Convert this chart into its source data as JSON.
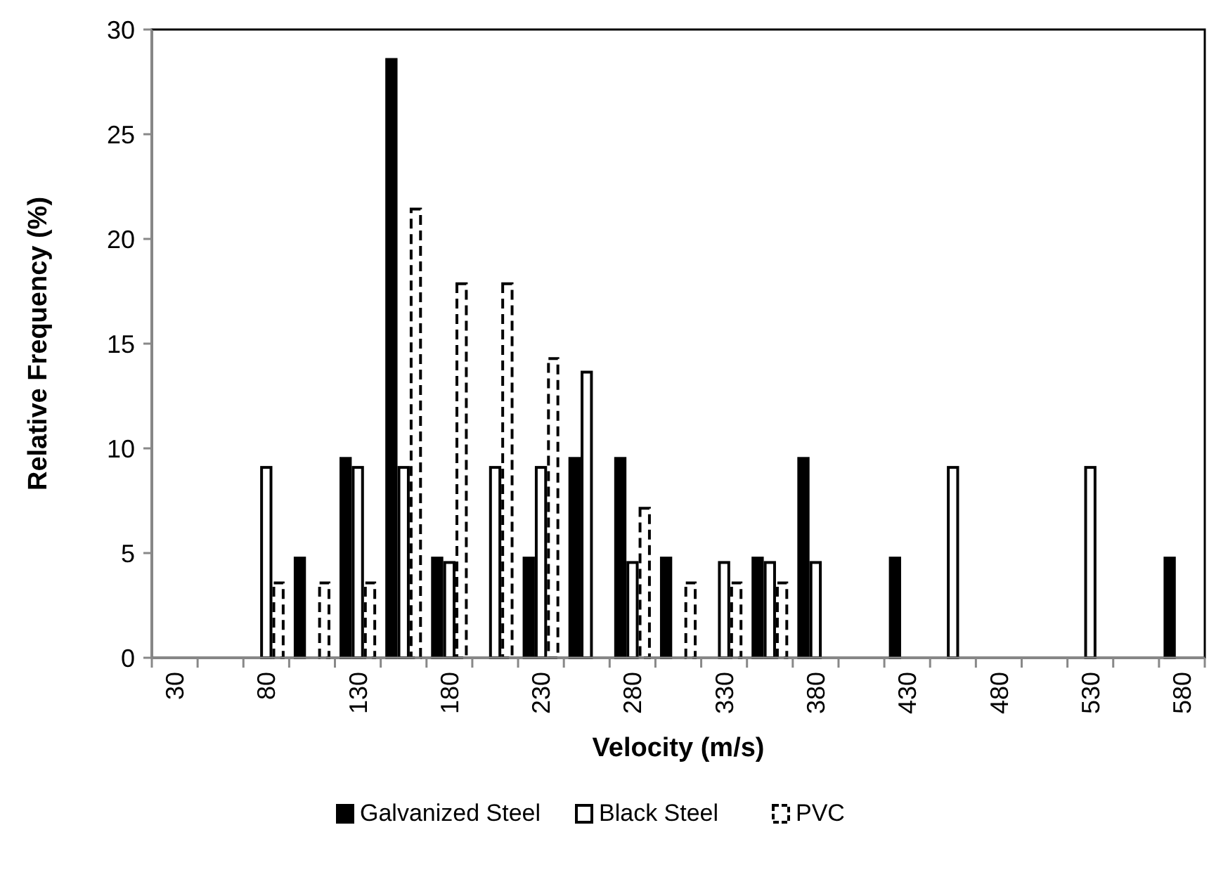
{
  "chart_data": {
    "type": "bar",
    "xlabel": "Velocity (m/s)",
    "ylabel": "Relative Frequency (%)",
    "categories": [
      "30",
      null,
      "80",
      null,
      "130",
      null,
      "180",
      null,
      "230",
      null,
      "280",
      null,
      "330",
      null,
      "380",
      null,
      "430",
      null,
      "480",
      null,
      "530",
      null,
      "580"
    ],
    "series": [
      {
        "name": "Galvanized Steel",
        "color": "#000000",
        "line_style": "solid",
        "values": [
          0,
          0,
          0,
          4.76,
          9.52,
          28.57,
          4.76,
          0,
          4.76,
          9.52,
          9.52,
          4.76,
          0,
          4.76,
          9.52,
          0,
          4.76,
          0,
          0,
          0,
          0,
          0,
          4.76
        ]
      },
      {
        "name": "Black Steel",
        "color": "#ffffff",
        "line_style": "solid",
        "values": [
          0,
          0,
          9.09,
          0,
          9.09,
          9.09,
          4.55,
          9.09,
          9.09,
          13.64,
          4.55,
          0,
          4.55,
          4.55,
          4.55,
          0,
          0,
          9.09,
          0,
          0,
          9.09,
          0,
          0
        ]
      },
      {
        "name": "PVC",
        "color": "#ffffff",
        "line_style": "dashed",
        "values": [
          0,
          0,
          3.57,
          3.57,
          3.57,
          21.43,
          17.86,
          17.86,
          14.29,
          0,
          7.14,
          3.57,
          3.57,
          3.57,
          0,
          0,
          0,
          0,
          0,
          0,
          0,
          0,
          0
        ]
      }
    ],
    "ylim": [
      0,
      30
    ],
    "yticks": [
      0,
      5,
      10,
      15,
      20,
      25,
      30
    ],
    "grid": false,
    "legend": "bottom"
  }
}
